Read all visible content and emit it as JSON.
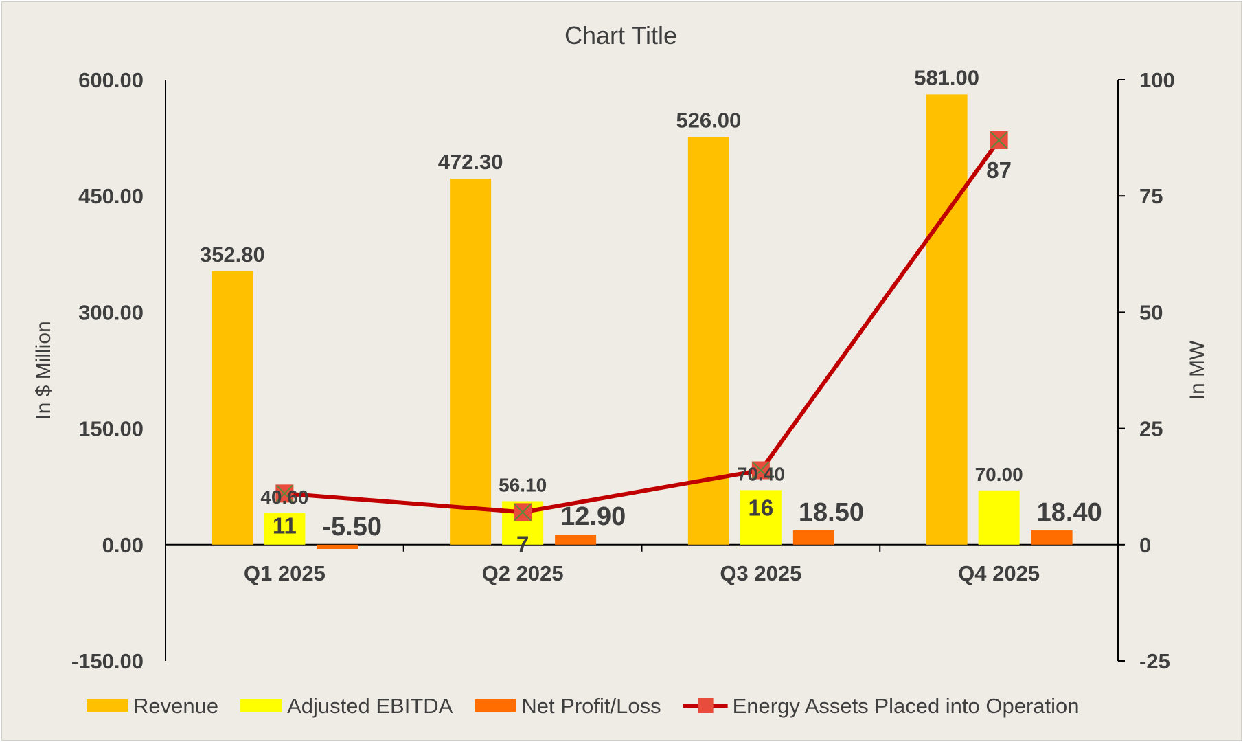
{
  "chart_data": {
    "type": "bar",
    "title": "Chart Title",
    "categories": [
      "Q1 2025",
      "Q2 2025",
      "Q3 2025",
      "Q4 2025"
    ],
    "ylabel": "In $ Million",
    "y2label": "In MW",
    "ylim": [
      -150,
      600
    ],
    "yticks": [
      "600.00",
      "450.00",
      "300.00",
      "150.00",
      "0.00",
      "-150.00"
    ],
    "y2lim": [
      -25,
      100
    ],
    "y2ticks": [
      "100",
      "75",
      "50",
      "25",
      "0",
      "-25"
    ],
    "grid": false,
    "legend_position": "bottom",
    "series": [
      {
        "name": "Revenue",
        "type": "bar",
        "axis": "left",
        "color": "#ffc000",
        "values": [
          352.8,
          472.3,
          526.0,
          581.0
        ],
        "labels": [
          "352.80",
          "472.30",
          "526.00",
          "581.00"
        ]
      },
      {
        "name": "Adjusted EBITDA",
        "type": "bar",
        "axis": "left",
        "color": "#ffff00",
        "values": [
          40.6,
          56.1,
          70.4,
          70.0
        ],
        "labels": [
          "40.60",
          "56.10",
          "70.40",
          "70.00"
        ]
      },
      {
        "name": "Net Profit/Loss",
        "type": "bar",
        "axis": "left",
        "color": "#ff6d00",
        "values": [
          -5.5,
          12.9,
          18.5,
          18.4
        ],
        "labels": [
          "-5.50",
          "12.90",
          "18.50",
          "18.40"
        ]
      },
      {
        "name": "Energy Assets Placed into Operation",
        "type": "line",
        "axis": "right",
        "color": "#c00000",
        "marker_color": "#e84c3d",
        "values": [
          11,
          7,
          16,
          87
        ],
        "labels": [
          "11",
          "7",
          "16",
          "87"
        ]
      }
    ]
  }
}
